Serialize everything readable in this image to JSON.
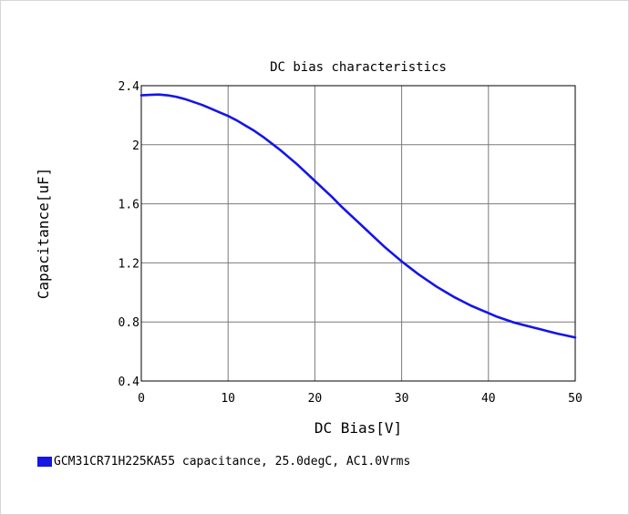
{
  "chart_data": {
    "type": "line",
    "title": "DC bias characteristics",
    "xlabel": "DC Bias[V]",
    "ylabel": "Capacitance[uF]",
    "xlim": [
      0,
      50
    ],
    "ylim": [
      0.4,
      2.4
    ],
    "xticks": [
      "0",
      "10",
      "20",
      "30",
      "40",
      "50"
    ],
    "yticks": [
      "0.4",
      "0.8",
      "1.2",
      "1.6",
      "2",
      "2.4"
    ],
    "grid": true,
    "legend_position": "bottom-left",
    "series": [
      {
        "name": "GCM31CR71H225KA55 capacitance, 25.0degC, AC1.0Vrms",
        "color": "#1515e6",
        "x": [
          0,
          1,
          2,
          3,
          4,
          5,
          6,
          7,
          8,
          9,
          10,
          11,
          12,
          13,
          14,
          15,
          16,
          17,
          18,
          19,
          20,
          21,
          22,
          23,
          24,
          25,
          26,
          27,
          28,
          29,
          30,
          31,
          32,
          33,
          34,
          35,
          36,
          37,
          38,
          39,
          40,
          41,
          42,
          43,
          44,
          45,
          46,
          47,
          48,
          49,
          50
        ],
        "y": [
          2.335,
          2.338,
          2.34,
          2.335,
          2.325,
          2.31,
          2.29,
          2.27,
          2.245,
          2.22,
          2.195,
          2.165,
          2.13,
          2.095,
          2.055,
          2.01,
          1.965,
          1.915,
          1.865,
          1.81,
          1.755,
          1.7,
          1.645,
          1.585,
          1.53,
          1.475,
          1.42,
          1.365,
          1.31,
          1.26,
          1.21,
          1.165,
          1.12,
          1.08,
          1.04,
          1.005,
          0.97,
          0.94,
          0.91,
          0.885,
          0.86,
          0.835,
          0.815,
          0.795,
          0.78,
          0.765,
          0.75,
          0.735,
          0.72,
          0.708,
          0.695
        ]
      }
    ]
  }
}
